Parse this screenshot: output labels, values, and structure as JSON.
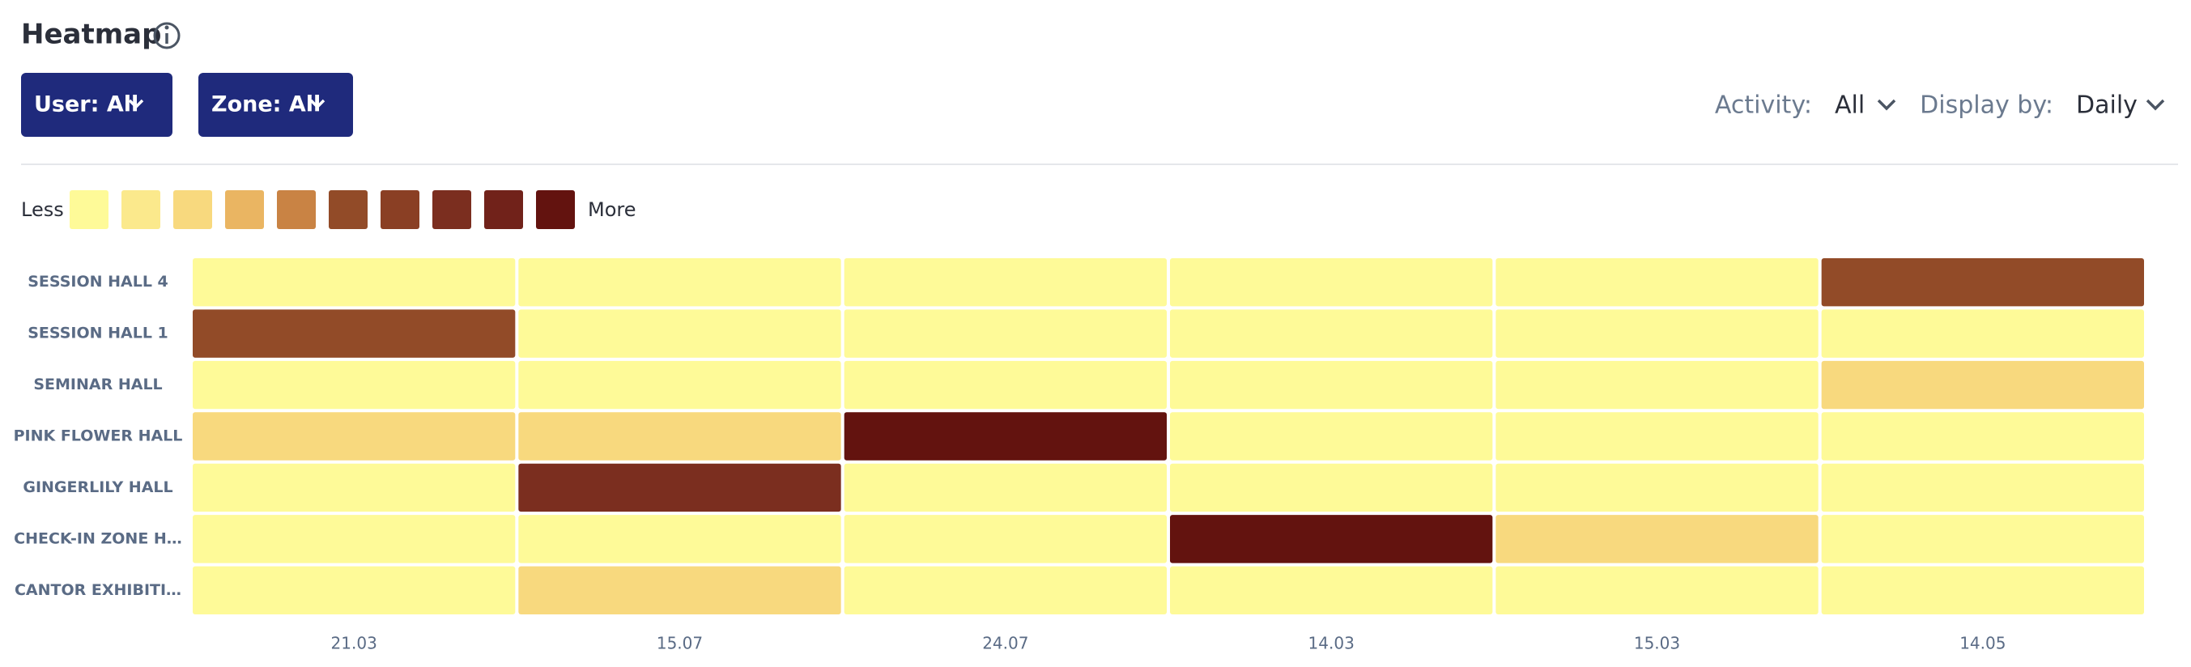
{
  "header": {
    "title": "Heatmap"
  },
  "controls": {
    "user": "User: All",
    "zone": "Zone: All",
    "activity_label": "Activity:",
    "activity_value": "All",
    "display_label": "Display by:",
    "display_value": "Daily"
  },
  "chart_data": {
    "type": "heatmap",
    "legend": {
      "low": "Less",
      "high": "More",
      "colors": [
        "#fefa98",
        "#fbe98c",
        "#f8d97e",
        "#eab562",
        "#c98344",
        "#924b28",
        "#8a3f24",
        "#7b2e1f",
        "#71221a",
        "#63130f"
      ]
    },
    "rows": [
      "SESSION HALL 4",
      "SESSION HALL 1",
      "SEMINAR HALL",
      "PINK FLOWER HALL",
      "GINGERLILY HALL",
      "CHECK-IN ZONE H…",
      "CANTOR EXHIBITI…"
    ],
    "categories": [
      "21.03",
      "15.07",
      "24.07",
      "14.03",
      "15.03",
      "14.05"
    ],
    "values": [
      [
        0,
        0,
        0,
        0,
        0,
        5
      ],
      [
        5,
        0,
        0,
        0,
        0,
        0
      ],
      [
        0,
        0,
        0,
        0,
        0,
        2
      ],
      [
        2,
        2,
        9,
        0,
        0,
        0
      ],
      [
        0,
        7,
        0,
        0,
        0,
        0
      ],
      [
        0,
        0,
        0,
        9,
        2,
        0
      ],
      [
        0,
        2,
        0,
        0,
        0,
        0
      ]
    ]
  }
}
